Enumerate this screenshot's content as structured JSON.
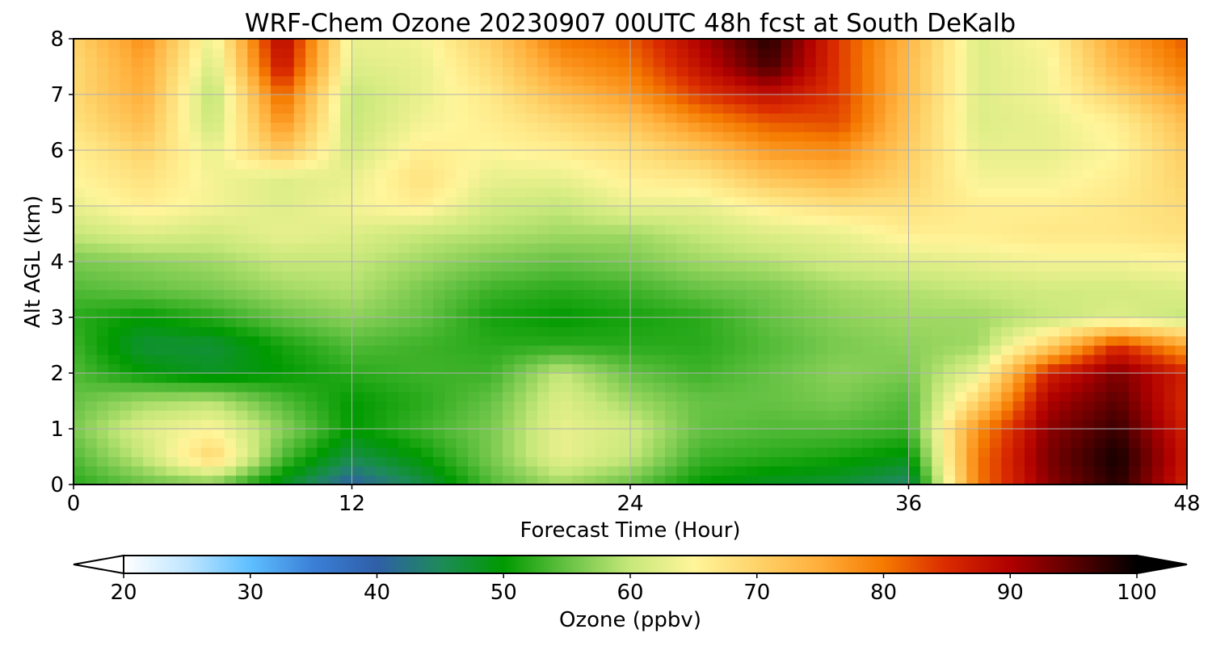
{
  "chart_data": {
    "type": "heatmap",
    "title": "WRF-Chem Ozone  20230907 00UTC 48h fcst at South DeKalb",
    "xlabel": "Forecast Time (Hour)",
    "ylabel": "Alt AGL (km)",
    "xlim": [
      0,
      48
    ],
    "ylim": [
      0,
      8
    ],
    "xticks": [
      0,
      12,
      24,
      36,
      48
    ],
    "yticks": [
      0,
      1,
      2,
      3,
      4,
      5,
      6,
      7,
      8
    ],
    "grid": true,
    "colorbar": {
      "label": "Ozone  (ppbv)",
      "min": 20,
      "max": 100,
      "ticks": [
        20,
        30,
        40,
        50,
        60,
        70,
        80,
        90,
        100
      ],
      "extend": "both",
      "colors": [
        "#ffffff",
        "#bfe6ff",
        "#5ebfff",
        "#3a7fd6",
        "#2f5fa8",
        "#1e8a5a",
        "#009a00",
        "#66c244",
        "#c7e87a",
        "#fff59a",
        "#fed36a",
        "#ffae3a",
        "#f57a00",
        "#d92a00",
        "#b00000",
        "#5a0000",
        "#000000"
      ]
    },
    "x": [
      0,
      3,
      6,
      9,
      12,
      15,
      18,
      21,
      24,
      27,
      30,
      33,
      36,
      39,
      42,
      45,
      48
    ],
    "y": [
      0,
      0.5,
      1,
      1.5,
      2,
      2.5,
      3,
      3.5,
      4,
      4.5,
      5,
      5.5,
      6,
      6.5,
      7,
      7.5,
      8
    ],
    "z": [
      [
        52,
        55,
        56,
        48,
        40,
        46,
        54,
        58,
        55,
        50,
        48,
        47,
        44,
        80,
        92,
        98,
        86
      ],
      [
        54,
        60,
        70,
        54,
        46,
        50,
        56,
        63,
        60,
        53,
        52,
        51,
        49,
        80,
        93,
        99,
        87
      ],
      [
        56,
        62,
        65,
        57,
        50,
        53,
        56,
        63,
        61,
        55,
        54,
        54,
        53,
        78,
        92,
        97,
        86
      ],
      [
        55,
        58,
        59,
        54,
        50,
        52,
        55,
        62,
        58,
        55,
        55,
        56,
        54,
        70,
        90,
        95,
        85
      ],
      [
        54,
        50,
        48,
        50,
        52,
        53,
        53,
        60,
        55,
        53,
        55,
        57,
        56,
        63,
        86,
        93,
        86
      ],
      [
        53,
        47,
        47,
        51,
        54,
        53,
        52,
        52,
        52,
        52,
        54,
        56,
        57,
        58,
        70,
        85,
        76
      ],
      [
        52,
        50,
        52,
        55,
        57,
        55,
        51,
        50,
        51,
        52,
        55,
        57,
        58,
        58,
        60,
        62,
        60
      ],
      [
        54,
        55,
        56,
        58,
        59,
        56,
        53,
        52,
        53,
        55,
        56,
        58,
        59,
        60,
        61,
        61,
        62
      ],
      [
        56,
        57,
        58,
        60,
        60,
        58,
        56,
        55,
        56,
        58,
        59,
        61,
        62,
        63,
        64,
        64,
        65
      ],
      [
        60,
        62,
        61,
        63,
        62,
        60,
        59,
        58,
        58,
        60,
        62,
        63,
        66,
        66,
        67,
        67,
        68
      ],
      [
        63,
        66,
        64,
        62,
        64,
        66,
        61,
        60,
        63,
        63,
        66,
        68,
        68,
        66,
        66,
        67,
        69
      ],
      [
        65,
        68,
        64,
        62,
        63,
        68,
        63,
        63,
        66,
        67,
        72,
        74,
        70,
        64,
        64,
        66,
        70
      ],
      [
        66,
        70,
        63,
        72,
        61,
        66,
        65,
        66,
        68,
        72,
        77,
        78,
        71,
        63,
        63,
        65,
        71
      ],
      [
        68,
        73,
        60,
        78,
        60,
        64,
        66,
        69,
        72,
        78,
        82,
        83,
        72,
        62,
        63,
        66,
        73
      ],
      [
        69,
        75,
        59,
        82,
        60,
        63,
        67,
        73,
        77,
        84,
        88,
        84,
        73,
        62,
        64,
        70,
        77
      ],
      [
        69,
        76,
        61,
        88,
        62,
        63,
        69,
        77,
        80,
        88,
        96,
        84,
        73,
        62,
        64,
        74,
        80
      ],
      [
        70,
        78,
        63,
        90,
        63,
        64,
        71,
        80,
        82,
        90,
        98,
        84,
        74,
        62,
        65,
        76,
        82
      ]
    ]
  }
}
